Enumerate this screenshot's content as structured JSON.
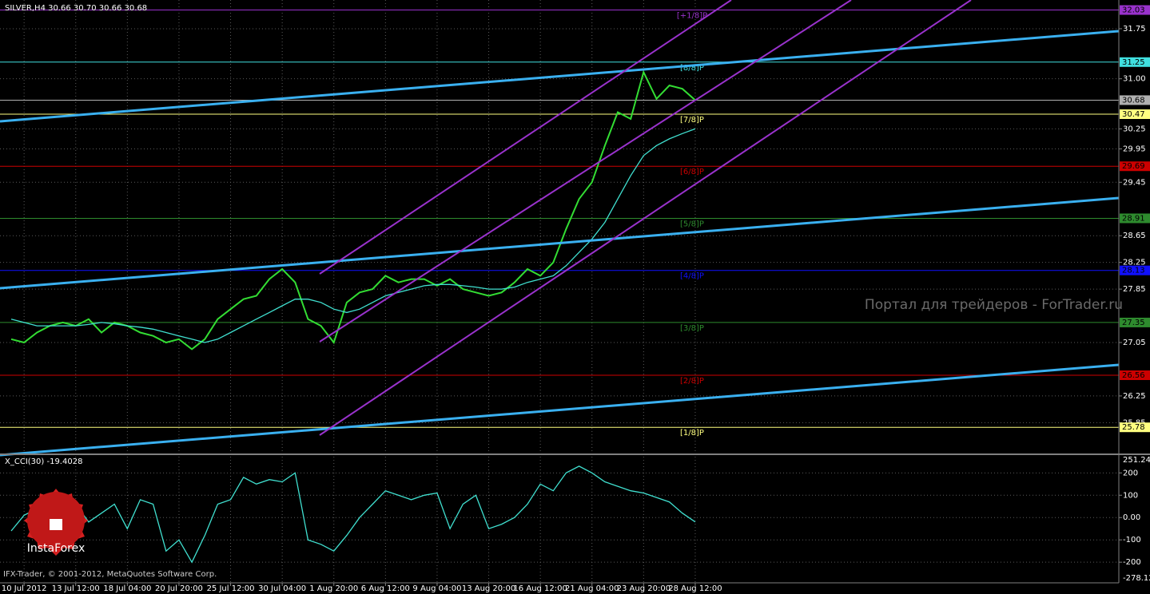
{
  "chart_data": [
    {
      "type": "line",
      "title": "SILVER,H4  30.66 30.70 30.66 30.68",
      "categories": [
        null,
        "10 Jul 2012",
        null,
        null,
        null,
        "13 Jul 12:00",
        null,
        null,
        null,
        "18 Jul 04:00",
        null,
        null,
        null,
        "20 Jul 20:00",
        null,
        null,
        null,
        "25 Jul 12:00",
        null,
        null,
        null,
        "30 Jul 04:00",
        null,
        null,
        null,
        "1 Aug 20:00",
        null,
        null,
        null,
        "6 Aug 12:00",
        null,
        null,
        null,
        "9 Aug 04:00",
        null,
        null,
        null,
        "13 Aug 20:00",
        null,
        null,
        null,
        "16 Aug 12:00",
        null,
        null,
        null,
        "21 Aug 04:00",
        null,
        null,
        null,
        "23 Aug 20:00",
        null,
        null,
        null,
        "28 Aug 12:00"
      ],
      "series": [
        {
          "color": "#33dd33",
          "values": [
            27.1,
            27.05,
            27.2,
            27.3,
            27.35,
            27.3,
            27.4,
            27.2,
            27.35,
            27.3,
            27.2,
            27.15,
            27.05,
            27.1,
            26.95,
            27.1,
            27.4,
            27.55,
            27.7,
            27.75,
            28.0,
            28.15,
            27.95,
            27.4,
            27.3,
            27.05,
            27.65,
            27.8,
            27.85,
            28.05,
            27.95,
            28.0,
            28.0,
            27.9,
            28.0,
            27.85,
            27.8,
            27.75,
            27.8,
            27.95,
            28.15,
            28.05,
            28.25,
            28.75,
            29.2,
            29.45,
            30.0,
            30.5,
            30.4,
            31.1,
            30.7,
            30.9,
            30.85,
            30.68
          ]
        },
        {
          "color": "#40e0d0",
          "values": [
            27.4,
            27.35,
            27.3,
            27.3,
            27.3,
            27.3,
            27.32,
            27.35,
            27.33,
            27.3,
            27.28,
            27.25,
            27.2,
            27.15,
            27.1,
            27.05,
            27.1,
            27.2,
            27.3,
            27.4,
            27.5,
            27.6,
            27.7,
            27.7,
            27.65,
            27.55,
            27.5,
            27.55,
            27.65,
            27.75,
            27.8,
            27.85,
            27.9,
            27.92,
            27.92,
            27.9,
            27.88,
            27.85,
            27.85,
            27.88,
            27.95,
            28.0,
            28.05,
            28.2,
            28.4,
            28.6,
            28.85,
            29.2,
            29.55,
            29.85,
            30.0,
            30.1,
            30.18,
            30.25
          ]
        }
      ],
      "ylim": [
        25.4,
        32.18
      ],
      "yticks": [
        31.75,
        {
          "value": 31.0,
          "label": "31.00"
        },
        30.25,
        29.95,
        29.45,
        28.65,
        28.25,
        27.85,
        27.05,
        26.25,
        25.85
      ],
      "grid": true,
      "levels": [
        {
          "value": 32.03,
          "label": "[+1/8]P",
          "color": "#9932cc"
        },
        {
          "value": 31.25,
          "label": "[8/8]P",
          "color": "#40e0e0"
        },
        {
          "value": 30.68,
          "color": "#b0b0b0"
        },
        {
          "value": 30.47,
          "label": "[7/8]P",
          "color": "#ffff80"
        },
        {
          "value": 29.69,
          "label": "[6/8]P",
          "color": "#cc0000"
        },
        {
          "value": 28.91,
          "label": "[5/8]P",
          "color": "#2e8b2e"
        },
        {
          "value": 28.13,
          "label": "[4/8]P",
          "color": "#1010ff"
        },
        {
          "value": 27.35,
          "label": "[3/8]P",
          "color": "#2e8b2e"
        },
        {
          "value": 26.56,
          "label": "[2/8]P",
          "color": "#cc0000"
        },
        {
          "value": 25.78,
          "label": "[1/8]P",
          "color": "#ffff80"
        }
      ]
    },
    {
      "type": "line",
      "title": "X_CCI(30) -19.4028",
      "series": [
        {
          "color": "#40e0d0",
          "values": [
            -60,
            10,
            40,
            80,
            100,
            60,
            -20,
            20,
            60,
            -50,
            80,
            60,
            -150,
            -100,
            -200,
            -80,
            60,
            80,
            180,
            150,
            170,
            160,
            200,
            -100,
            -120,
            -150,
            -80,
            0,
            60,
            120,
            100,
            80,
            100,
            110,
            -50,
            60,
            100,
            -50,
            -30,
            0,
            60,
            150,
            120,
            200,
            230,
            200,
            160,
            140,
            120,
            110,
            90,
            70,
            20,
            -19.4028
          ]
        }
      ],
      "ylim": [
        -278.129,
        251.248
      ],
      "yticks": [
        200,
        100,
        {
          "value": 0,
          "label": "0.00"
        },
        -100,
        -200
      ],
      "grid": true
    }
  ],
  "watermark": "Портал для трейдеров - ForTrader.ru",
  "copyright": "IFX-Trader, © 2001-2012, MetaQuotes Software Corp.",
  "logo": "InstaForex"
}
